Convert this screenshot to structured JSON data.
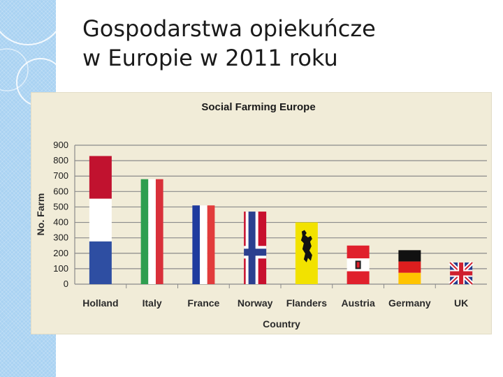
{
  "slide": {
    "title_line1": "Gospodarstwa opiekuńcze",
    "title_line2": "w Europie w 2011 roku"
  },
  "chart_data": {
    "type": "bar",
    "title": "Social Farming Europe",
    "xlabel": "Country",
    "ylabel": "No. Farm",
    "ylim": [
      0,
      900
    ],
    "yticks": [
      0,
      100,
      200,
      300,
      400,
      500,
      600,
      700,
      800,
      900
    ],
    "grid": true,
    "categories": [
      "Holland",
      "Italy",
      "France",
      "Norway",
      "Flanders",
      "Austria",
      "Germany",
      "UK"
    ],
    "values": [
      830,
      680,
      510,
      470,
      400,
      250,
      220,
      140
    ],
    "bar_fills": [
      "Dutch flag",
      "Italian flag",
      "French flag",
      "Norwegian flag",
      "Flemish flag",
      "Austrian flag",
      "German flag",
      "British flag"
    ]
  },
  "colors": {
    "panel_background": "#f1ecd8",
    "left_band": "#a9d2f2",
    "grid_line": "#8a8a8a",
    "dutch_red": "#c1122f",
    "dutch_blue": "#2e4ea2",
    "italian_green": "#2e9e4f",
    "italian_red": "#d9303a",
    "french_blue": "#1f3b9e",
    "french_red": "#e23c3c",
    "norway_red": "#c8102e",
    "norway_blue": "#2b3f8f",
    "flanders_yellow": "#f2e200",
    "austria_red": "#e0202c",
    "german_black": "#111111",
    "german_red": "#dd1e1e",
    "german_gold": "#ffc400",
    "uk_blue": "#223a8c",
    "uk_red": "#cf1f2e"
  }
}
